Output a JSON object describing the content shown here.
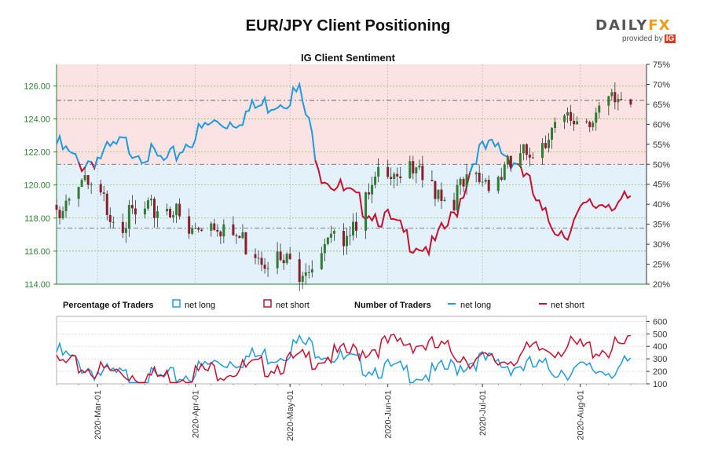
{
  "header": {
    "title": "EUR/JPY Client Positioning",
    "logo_main_left": "DAILY",
    "logo_main_right": "FX",
    "logo_sub": "provided by",
    "logo_ig": "IG"
  },
  "chart_data": [
    {
      "type": "candlestick-with-line",
      "title": "IG Client Sentiment",
      "price_axis": {
        "ticks": [
          "114.00",
          "116.00",
          "118.00",
          "120.00",
          "122.00",
          "124.00",
          "126.00"
        ],
        "ylim": [
          114,
          127.3
        ]
      },
      "percent_axis": {
        "ticks": [
          "20%",
          "25%",
          "30%",
          "35%",
          "40%",
          "45%",
          "50%",
          "55%",
          "60%",
          "65%",
          "70%",
          "75%"
        ],
        "ylim": [
          20,
          75
        ]
      },
      "reference_lines_percent": [
        34,
        50,
        66
      ],
      "price_ohlc_approx": {
        "x": [
          "2020-02-17",
          "2020-02-24",
          "2020-03-02",
          "2020-03-09",
          "2020-03-16",
          "2020-03-23",
          "2020-03-30",
          "2020-04-06",
          "2020-04-13",
          "2020-04-20",
          "2020-04-27",
          "2020-05-04",
          "2020-05-11",
          "2020-05-18",
          "2020-05-25",
          "2020-06-01",
          "2020-06-08",
          "2020-06-15",
          "2020-06-22",
          "2020-06-29",
          "2020-07-06",
          "2020-07-13",
          "2020-07-20",
          "2020-07-27",
          "2020-08-03",
          "2020-08-10",
          "2020-08-17"
        ],
        "close": [
          118.8,
          120.5,
          119.5,
          118.3,
          118.5,
          119.5,
          117.4,
          118.6,
          117.4,
          116.6,
          115.8,
          115.4,
          116.2,
          117.6,
          119.2,
          121.8,
          121.0,
          120.4,
          119.8,
          120.8,
          121.0,
          121.9,
          123.4,
          124.2,
          124.6,
          125.2,
          126.1
        ]
      },
      "percent_net_long_approx": {
        "x": [
          "2020-02-17",
          "2020-02-24",
          "2020-03-02",
          "2020-03-09",
          "2020-03-16",
          "2020-03-23",
          "2020-03-30",
          "2020-04-06",
          "2020-04-13",
          "2020-04-20",
          "2020-04-27",
          "2020-05-04",
          "2020-05-11",
          "2020-05-18",
          "2020-05-25",
          "2020-06-01",
          "2020-06-08",
          "2020-06-15",
          "2020-06-22",
          "2020-06-29",
          "2020-07-06",
          "2020-07-13",
          "2020-07-20",
          "2020-07-27",
          "2020-08-03",
          "2020-08-10",
          "2020-08-17"
        ],
        "values": [
          55,
          50,
          52,
          55,
          53,
          50,
          56,
          60,
          61,
          64,
          66,
          68,
          48,
          43,
          39,
          36,
          31,
          29,
          37,
          53,
          54,
          50,
          37,
          33,
          39,
          41,
          40
        ]
      }
    },
    {
      "type": "line",
      "title": "Number of Traders",
      "y_axis": {
        "ticks": [
          "100",
          "200",
          "300",
          "400",
          "500",
          "600"
        ],
        "ylim": [
          100,
          640
        ]
      },
      "x_tick_labels": [
        "2020-Mar-01",
        "2020-Apr-01",
        "2020-May-01",
        "2020-Jun-01",
        "2020-Jul-01",
        "2020-Aug-01"
      ],
      "series_approx": [
        {
          "name": "net long",
          "x": [
            "2020-02-17",
            "2020-02-24",
            "2020-03-02",
            "2020-03-09",
            "2020-03-16",
            "2020-03-23",
            "2020-03-30",
            "2020-04-06",
            "2020-04-13",
            "2020-04-20",
            "2020-04-27",
            "2020-05-04",
            "2020-05-11",
            "2020-05-18",
            "2020-05-25",
            "2020-06-01",
            "2020-06-08",
            "2020-06-15",
            "2020-06-22",
            "2020-06-29",
            "2020-07-06",
            "2020-07-13",
            "2020-07-20",
            "2020-07-27",
            "2020-08-03",
            "2020-08-10",
            "2020-08-17"
          ],
          "values": [
            400,
            300,
            230,
            200,
            190,
            180,
            220,
            300,
            340,
            360,
            380,
            470,
            420,
            330,
            290,
            260,
            230,
            220,
            280,
            340,
            300,
            290,
            270,
            260,
            250,
            260,
            290
          ]
        },
        {
          "name": "net short",
          "x": [
            "2020-02-17",
            "2020-02-24",
            "2020-03-02",
            "2020-03-09",
            "2020-03-16",
            "2020-03-23",
            "2020-03-30",
            "2020-04-06",
            "2020-04-13",
            "2020-04-20",
            "2020-04-27",
            "2020-05-04",
            "2020-05-11",
            "2020-05-18",
            "2020-05-25",
            "2020-06-01",
            "2020-06-08",
            "2020-06-15",
            "2020-06-22",
            "2020-06-29",
            "2020-07-06",
            "2020-07-13",
            "2020-07-20",
            "2020-07-27",
            "2020-08-03",
            "2020-08-10",
            "2020-08-17"
          ],
          "values": [
            310,
            280,
            250,
            230,
            210,
            200,
            230,
            250,
            260,
            270,
            300,
            330,
            360,
            380,
            420,
            460,
            480,
            440,
            400,
            330,
            320,
            380,
            420,
            440,
            430,
            420,
            460
          ]
        }
      ]
    }
  ],
  "legend": {
    "pct_title": "Percentage of Traders",
    "pct_long": "net long",
    "pct_short": "net short",
    "num_title": "Number of Traders",
    "num_long": "net long",
    "num_short": "net short"
  },
  "colors": {
    "long": "#1e9be0",
    "short": "#c8102e",
    "long_fill": "#e3f1fa",
    "short_fill": "#fbe3e3",
    "candle_up": "#2e7d32",
    "candle_down": "#8b1e2a",
    "price_axis": "#2e7d32"
  }
}
